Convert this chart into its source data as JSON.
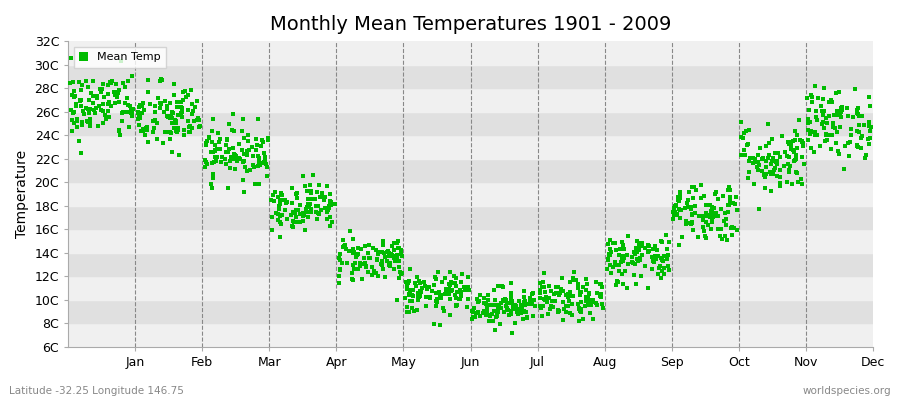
{
  "title": "Monthly Mean Temperatures 1901 - 2009",
  "ylabel": "Temperature",
  "xlabel_bottom_left": "Latitude -32.25 Longitude 146.75",
  "watermark": "worldspecies.org",
  "legend_label": "Mean Temp",
  "dot_color": "#00bb00",
  "background_color": "#ffffff",
  "band_colors": [
    "#f0f0f0",
    "#e0e0e0"
  ],
  "ylim": [
    6,
    32
  ],
  "yticks": [
    6,
    8,
    10,
    12,
    14,
    16,
    18,
    20,
    22,
    24,
    26,
    28,
    30,
    32
  ],
  "ytick_labels": [
    "6C",
    "8C",
    "10C",
    "12C",
    "14C",
    "16C",
    "18C",
    "20C",
    "22C",
    "24C",
    "26C",
    "28C",
    "30C",
    "32C"
  ],
  "month_names": [
    "Jan",
    "Feb",
    "Mar",
    "Apr",
    "May",
    "Jun",
    "Jul",
    "Aug",
    "Sep",
    "Oct",
    "Nov",
    "Dec"
  ],
  "month_mean_temps": [
    26.5,
    25.5,
    22.5,
    18.0,
    13.5,
    10.5,
    9.5,
    10.0,
    13.5,
    17.5,
    22.0,
    25.0
  ],
  "month_std_temps": [
    1.5,
    1.5,
    1.2,
    1.0,
    1.0,
    0.9,
    0.8,
    0.9,
    1.1,
    1.3,
    1.5,
    1.5
  ],
  "n_years": 109,
  "seed": 42,
  "dot_size": 8,
  "title_fontsize": 14,
  "axis_fontsize": 9,
  "ylabel_fontsize": 10
}
